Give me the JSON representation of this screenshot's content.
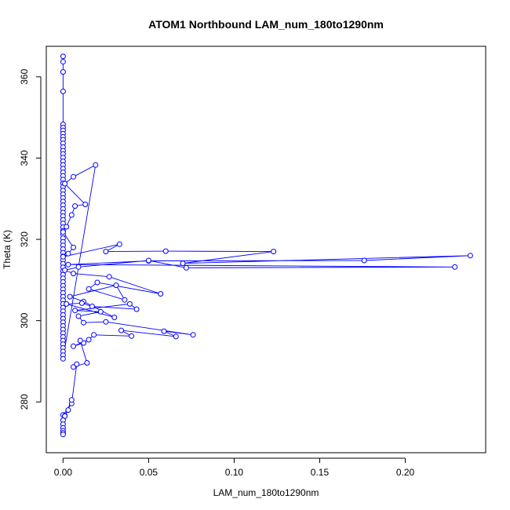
{
  "chart_data": {
    "type": "scatter",
    "title": "ATOM1 Northbound LAM_num_180to1290nm",
    "xlabel": "LAM_num_180to1290nm",
    "ylabel": "Theta (K)",
    "xlim": [
      -0.0098,
      0.247
    ],
    "ylim": [
      267.5,
      367.5
    ],
    "xticks": [
      0.0,
      0.05,
      0.1,
      0.15,
      0.2
    ],
    "xtick_labels": [
      "0.00",
      "0.05",
      "0.10",
      "0.15",
      "0.20"
    ],
    "yticks": [
      280,
      300,
      320,
      340,
      360
    ],
    "yticks_labels": [
      "280",
      "300",
      "320",
      "340",
      "360"
    ],
    "grid": false,
    "legend": "none",
    "mode": "lines+markers",
    "color": "#0000ff",
    "series": [
      {
        "x": [
          0.0,
          0.0,
          0.0,
          0.0,
          0.0,
          0.0,
          0.0,
          0.0,
          0.0,
          0.0,
          0.0,
          0.0,
          0.0,
          0.0,
          0.0,
          0.0,
          0.0,
          0.0,
          0.0,
          0.0,
          0.0,
          0.0,
          0.0,
          0.0,
          0.0,
          0.0,
          0.0,
          0.0,
          0.0,
          0.0,
          0.0,
          0.0,
          0.0,
          0.0,
          0.0,
          0.0,
          0.0,
          0.0,
          0.0,
          0.0,
          0.0,
          0.0,
          0.0,
          0.0,
          0.0,
          0.0,
          0.0,
          0.0,
          0.0,
          0.0,
          0.0,
          0.0,
          0.0,
          0.0,
          0.0,
          0.0,
          0.0,
          0.0,
          0.0,
          0.0,
          0.0,
          0.0,
          0.0,
          0.0,
          0.0,
          0.0,
          0.0,
          0.0,
          0.0,
          0.0,
          0.019,
          0.006,
          0.001,
          0.013,
          0.007,
          0.005,
          0.002,
          0.0,
          0.006,
          0.003,
          0.0,
          0.033,
          0.025,
          0.06,
          0.123,
          0.07,
          0.238,
          0.176,
          0.05,
          0.003,
          0.229,
          0.072,
          0.05,
          0.009,
          0.001,
          0.006,
          0.027,
          0.057,
          0.02,
          0.015,
          0.036,
          0.031,
          0.004,
          0.012,
          0.03,
          0.002,
          0.011,
          0.017,
          0.043,
          0.039,
          0.007,
          0.022,
          0.009,
          0.012,
          0.025,
          0.076,
          0.059,
          0.066,
          0.034,
          0.04,
          0.018,
          0.015,
          0.006,
          0.012,
          0.01,
          0.014,
          0.006,
          0.008,
          0.005,
          0.0,
          0.001,
          0.003,
          0.005,
          0.001,
          0.0,
          0.0,
          0.0,
          0.0,
          0.0,
          0.0
        ],
        "y": [
          365.0,
          363.7,
          361.2,
          356.4,
          348.3,
          347.5,
          346.8,
          346.0,
          345.2,
          344.5,
          343.6,
          342.7,
          341.8,
          341.0,
          340.1,
          339.2,
          338.3,
          337.4,
          336.5,
          335.6,
          334.7,
          333.8,
          332.9,
          332.0,
          331.1,
          330.2,
          329.3,
          328.4,
          327.5,
          326.6,
          325.7,
          324.8,
          323.9,
          323.0,
          322.1,
          321.2,
          320.3,
          319.4,
          318.5,
          317.6,
          316.7,
          315.8,
          314.9,
          314.0,
          313.1,
          312.2,
          311.3,
          310.4,
          309.5,
          308.6,
          307.7,
          306.8,
          305.9,
          305.0,
          304.1,
          303.2,
          302.3,
          301.4,
          300.5,
          299.6,
          298.7,
          297.8,
          296.9,
          296.0,
          295.1,
          294.2,
          293.3,
          292.4,
          291.5,
          290.6,
          338.3,
          335.4,
          333.7,
          328.6,
          328.2,
          326.0,
          323.1,
          321.8,
          318.0,
          316.5,
          315.7,
          318.8,
          317.0,
          317.1,
          317.0,
          314.1,
          316.0,
          314.8,
          314.7,
          313.8,
          313.2,
          313.0,
          314.8,
          313.2,
          312.4,
          311.6,
          310.8,
          306.6,
          309.4,
          307.8,
          305.1,
          308.7,
          305.9,
          304.7,
          300.8,
          304.1,
          304.3,
          303.5,
          302.8,
          304.1,
          302.5,
          302.2,
          301.1,
          299.5,
          299.7,
          296.5,
          297.4,
          296.1,
          297.6,
          296.2,
          296.5,
          295.3,
          293.7,
          294.5,
          295.1,
          289.6,
          288.6,
          289.3,
          279.6,
          276.8,
          276.6,
          278.0,
          280.5,
          276.5,
          275.5,
          274.5,
          273.6,
          272.9,
          272.4,
          272.0
        ]
      }
    ]
  }
}
